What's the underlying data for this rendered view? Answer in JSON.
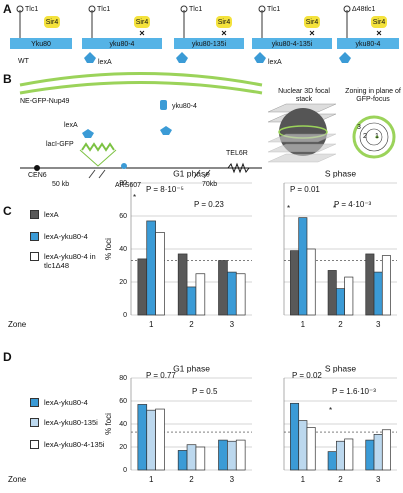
{
  "figure": {
    "panel_labels": [
      "A",
      "B",
      "C",
      "D"
    ],
    "constructs": [
      {
        "telomerase": "Tlc1",
        "sir": "Sir4",
        "ku": "Yku80",
        "caption": "WT"
      },
      {
        "telomerase": "Tlc1",
        "sir": "Sir4",
        "ku": "yku80-4",
        "tether": "lexA"
      },
      {
        "telomerase": "Tlc1",
        "sir": "Sir4",
        "ku": "yku80-135i"
      },
      {
        "telomerase": "Tlc1",
        "sir": "Sir4",
        "ku": "yku80-4-135i",
        "tether": "lexA"
      },
      {
        "telomerase": "Δ48tlc1",
        "sir": "Sir4",
        "ku": "yku80-4"
      }
    ],
    "schematic": {
      "envelope": "NE-GFP-Nup49",
      "fusion": "yku80-4",
      "tether": "lexA",
      "reporter": "lacI-GFP",
      "centromere": "CEN6",
      "left_distance": "50 kb",
      "locus": "ARS607",
      "right_distance": "70kb",
      "telomere": "TEL6R",
      "stack_caption": "Nuclear 3D focal stack",
      "zoning_caption": "Zoning in plane of GFP-focus",
      "zones": [
        "1",
        "2",
        "3"
      ]
    }
  },
  "chart_data": [
    {
      "type": "bar",
      "title": "G1 phase",
      "ylabel": "% foci",
      "xlabel": "Zone",
      "categories": [
        "1",
        "2",
        "3"
      ],
      "series": [
        {
          "name": "lexA",
          "color": "#595959",
          "values": [
            34,
            37,
            33
          ]
        },
        {
          "name": "lexA-yku80-4",
          "color": "#3b9bd6",
          "values": [
            57,
            17,
            26
          ]
        },
        {
          "name": "lexA-yku80-4 in tlc1Δ48",
          "color": "#ffffff",
          "values": [
            50,
            25,
            25
          ]
        }
      ],
      "ylim": [
        0,
        80
      ],
      "yticks": [
        0,
        20,
        40,
        60,
        80
      ],
      "ytick_labels": true,
      "grid": true,
      "reference_line": 33,
      "annotations": [
        "P = 8·10⁻⁵",
        "P = 0.23",
        "*"
      ]
    },
    {
      "type": "bar",
      "title": "S phase",
      "categories": [
        "1",
        "2",
        "3"
      ],
      "series": [
        {
          "color": "#595959",
          "values": [
            39,
            27,
            37
          ]
        },
        {
          "color": "#3b9bd6",
          "values": [
            59,
            16,
            26
          ]
        },
        {
          "color": "#ffffff",
          "values": [
            40,
            23,
            36
          ]
        }
      ],
      "ylim": [
        0,
        80
      ],
      "yticks": [
        0,
        20,
        40,
        60,
        80
      ],
      "ytick_labels": false,
      "grid": true,
      "reference_line": 33,
      "annotations": [
        "P = 0.01",
        "P = 4·10⁻³",
        "*",
        "*"
      ]
    },
    {
      "type": "bar",
      "title": "G1 phase",
      "ylabel": "% foci",
      "xlabel": "Zone",
      "categories": [
        "1",
        "2",
        "3"
      ],
      "series": [
        {
          "name": "lexA-yku80-4",
          "color": "#3b9bd6",
          "values": [
            57,
            17,
            26
          ]
        },
        {
          "name": "lexA-yku80-135i",
          "color": "#bcd8ee",
          "values": [
            52,
            22,
            25
          ]
        },
        {
          "name": "lexA-yku80-4-135i",
          "color": "#ffffff",
          "values": [
            53,
            20,
            26
          ]
        }
      ],
      "ylim": [
        0,
        80
      ],
      "yticks": [
        0,
        20,
        40,
        60,
        80
      ],
      "ytick_labels": true,
      "grid": true,
      "reference_line": 33,
      "annotations": [
        "P = 0.77",
        "P = 0.5"
      ]
    },
    {
      "type": "bar",
      "title": "S phase",
      "categories": [
        "1",
        "2",
        "3"
      ],
      "series": [
        {
          "color": "#3b9bd6",
          "values": [
            58,
            16,
            26
          ]
        },
        {
          "color": "#bcd8ee",
          "values": [
            43,
            25,
            31
          ]
        },
        {
          "color": "#ffffff",
          "values": [
            37,
            27,
            35
          ]
        }
      ],
      "ylim": [
        0,
        80
      ],
      "yticks": [
        0,
        20,
        40,
        60,
        80
      ],
      "ytick_labels": false,
      "grid": true,
      "reference_line": 33,
      "annotations": [
        "P = 0.02",
        "P = 1.6·10⁻³",
        "*"
      ]
    }
  ]
}
